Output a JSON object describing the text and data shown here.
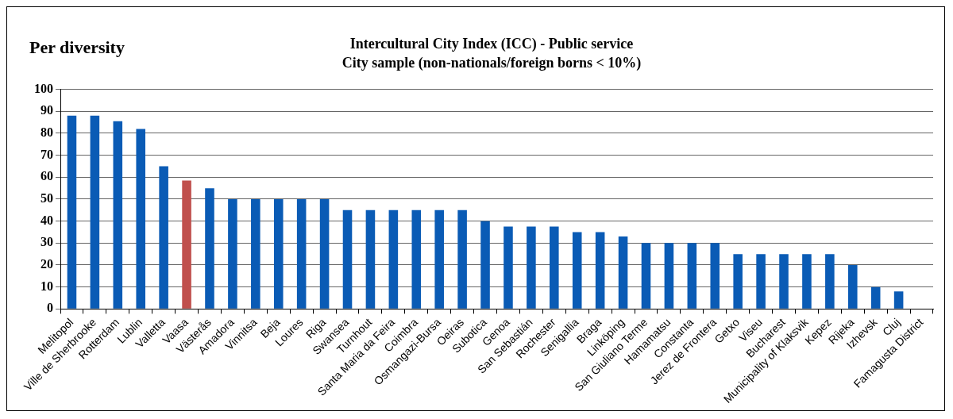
{
  "chart_data": {
    "type": "bar",
    "title": "Intercultural City Index (ICC) - Public service",
    "subtitle": "City sample (non-nationals/foreign borns < 10%)",
    "annotations": [
      "Per diversity"
    ],
    "categories": [
      "Melitopol",
      "Ville de Sherbrooke",
      "Rotterdam",
      "Lublin",
      "Valletta",
      "Vaasa",
      "Västerås",
      "Amadora",
      "Vinnitsa",
      "Beja",
      "Loures",
      "Riga",
      "Swansea",
      "Turnhout",
      "Santa Maria da Feira",
      "Coimbra",
      "Osmangazi-Bursa",
      "Oeiras",
      "Subotica",
      "Genoa",
      "San Sebastián",
      "Rochester",
      "Senigallia",
      "Braga",
      "Linköping",
      "San Giuliano Terme",
      "Hamamatsu",
      "Constanta",
      "Jerez de Frontera",
      "Getxo",
      "Viseu",
      "Bucharest",
      "Municipality of Klaksvik",
      "Kepez",
      "Rijeka",
      "Izhevsk",
      "Cluj",
      "Famagusta District"
    ],
    "values": [
      88,
      88,
      85.5,
      82,
      65,
      58.5,
      55,
      50,
      50,
      50,
      50,
      50,
      45,
      45,
      45,
      45,
      45,
      45,
      40,
      37.5,
      37.5,
      37.5,
      35,
      35,
      33,
      30,
      30,
      30,
      30,
      25,
      25,
      25,
      25,
      25,
      20,
      10,
      8,
      null
    ],
    "colors": [
      "#0a5bb5",
      "#0a5bb5",
      "#0a5bb5",
      "#0a5bb5",
      "#0a5bb5",
      "#c0504d",
      "#0a5bb5",
      "#0a5bb5",
      "#0a5bb5",
      "#0a5bb5",
      "#0a5bb5",
      "#0a5bb5",
      "#0a5bb5",
      "#0a5bb5",
      "#0a5bb5",
      "#0a5bb5",
      "#0a5bb5",
      "#0a5bb5",
      "#0a5bb5",
      "#0a5bb5",
      "#0a5bb5",
      "#0a5bb5",
      "#0a5bb5",
      "#0a5bb5",
      "#0a5bb5",
      "#0a5bb5",
      "#0a5bb5",
      "#0a5bb5",
      "#0a5bb5",
      "#0a5bb5",
      "#0a5bb5",
      "#0a5bb5",
      "#0a5bb5",
      "#0a5bb5",
      "#0a5bb5",
      "#0a5bb5",
      "#0a5bb5",
      "#0a5bb5"
    ],
    "ylim": [
      0,
      100
    ],
    "yticks": [
      0,
      10,
      20,
      30,
      40,
      50,
      60,
      70,
      80,
      90,
      100
    ],
    "grid": "y",
    "legend": false
  }
}
